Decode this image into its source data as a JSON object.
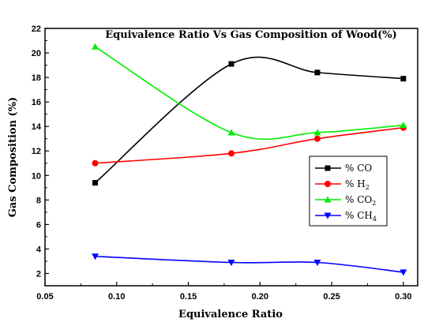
{
  "chart_data": {
    "type": "line",
    "title": "Equivalence Ratio Vs Gas Composition of Wood(%)",
    "xlabel": "Equivalence Ratio",
    "ylabel": "Gas Composition (%)",
    "xlim": [
      0.05,
      0.31
    ],
    "ylim": [
      1,
      22
    ],
    "x_ticks": [
      0.05,
      0.1,
      0.15,
      0.2,
      0.25,
      0.3
    ],
    "x_tick_labels": [
      "0.05",
      "0.10",
      "0.15",
      "0.20",
      "0.25",
      "0.30"
    ],
    "y_ticks": [
      2,
      4,
      6,
      8,
      10,
      12,
      14,
      16,
      18,
      20,
      22
    ],
    "y_tick_labels": [
      "2",
      "4",
      "6",
      "8",
      "10",
      "12",
      "14",
      "16",
      "18",
      "20",
      "22"
    ],
    "x": [
      0.085,
      0.18,
      0.24,
      0.3
    ],
    "series": [
      {
        "name": "% CO",
        "base": "% CO",
        "sub": "",
        "values": [
          9.4,
          19.1,
          18.4,
          17.9
        ],
        "color": "#000000",
        "marker": "square"
      },
      {
        "name": "% H2",
        "base": "% H",
        "sub": "2",
        "values": [
          11.0,
          11.8,
          13.0,
          13.9
        ],
        "color": "#ff0000",
        "marker": "circle"
      },
      {
        "name": "% CO2",
        "base": "% CO",
        "sub": "2",
        "values": [
          20.5,
          13.5,
          13.5,
          14.1
        ],
        "color": "#00ee00",
        "marker": "triangle-up"
      },
      {
        "name": "% CH4",
        "base": "% CH",
        "sub": "4",
        "values": [
          3.4,
          2.9,
          2.9,
          2.1
        ],
        "color": "#0000ff",
        "marker": "triangle-down"
      }
    ],
    "legend_position": "right",
    "grid": false
  }
}
